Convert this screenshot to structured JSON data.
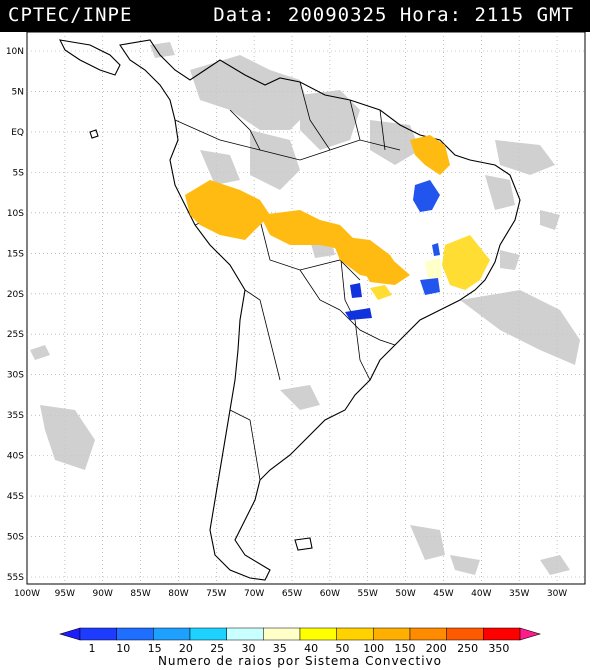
{
  "header": {
    "source": "CPTEC/INPE",
    "datetime": "Data: 20090325 Hora: 2115 GMT"
  },
  "map": {
    "lat_labels": [
      "10N",
      "5N",
      "EQ",
      "5S",
      "10S",
      "15S",
      "20S",
      "25S",
      "30S",
      "35S",
      "40S",
      "45S",
      "50S",
      "55S"
    ],
    "lon_labels": [
      "100W",
      "95W",
      "90W",
      "85W",
      "80W",
      "75W",
      "70W",
      "65W",
      "60W",
      "55W",
      "50W",
      "45W",
      "40W",
      "35W",
      "30W"
    ],
    "lat_range": [
      10,
      -55
    ],
    "lon_range": [
      -100,
      -30
    ],
    "grid": true,
    "colors": {
      "cloud": "#c8c8c8",
      "coast": "#000000"
    }
  },
  "colorbar": {
    "title": "Numero de raios por Sistema Convectivo",
    "ticks": [
      "1",
      "10",
      "15",
      "20",
      "25",
      "30",
      "35",
      "40",
      "50",
      "100",
      "150",
      "200",
      "250",
      "350"
    ],
    "colors": [
      "#1c1cff",
      "#1e3cff",
      "#1e6eff",
      "#1ea0ff",
      "#1ed2ff",
      "#c8ffff",
      "#ffffc8",
      "#ffff00",
      "#ffd200",
      "#ffaf00",
      "#ff8c00",
      "#ff5a00",
      "#ff0000",
      "#ff1a8c"
    ]
  },
  "storm_colors": {
    "orange": "#ffbb11",
    "yellow": "#ffdd33",
    "blue": "#2255ee",
    "darkblue": "#1133dd"
  }
}
